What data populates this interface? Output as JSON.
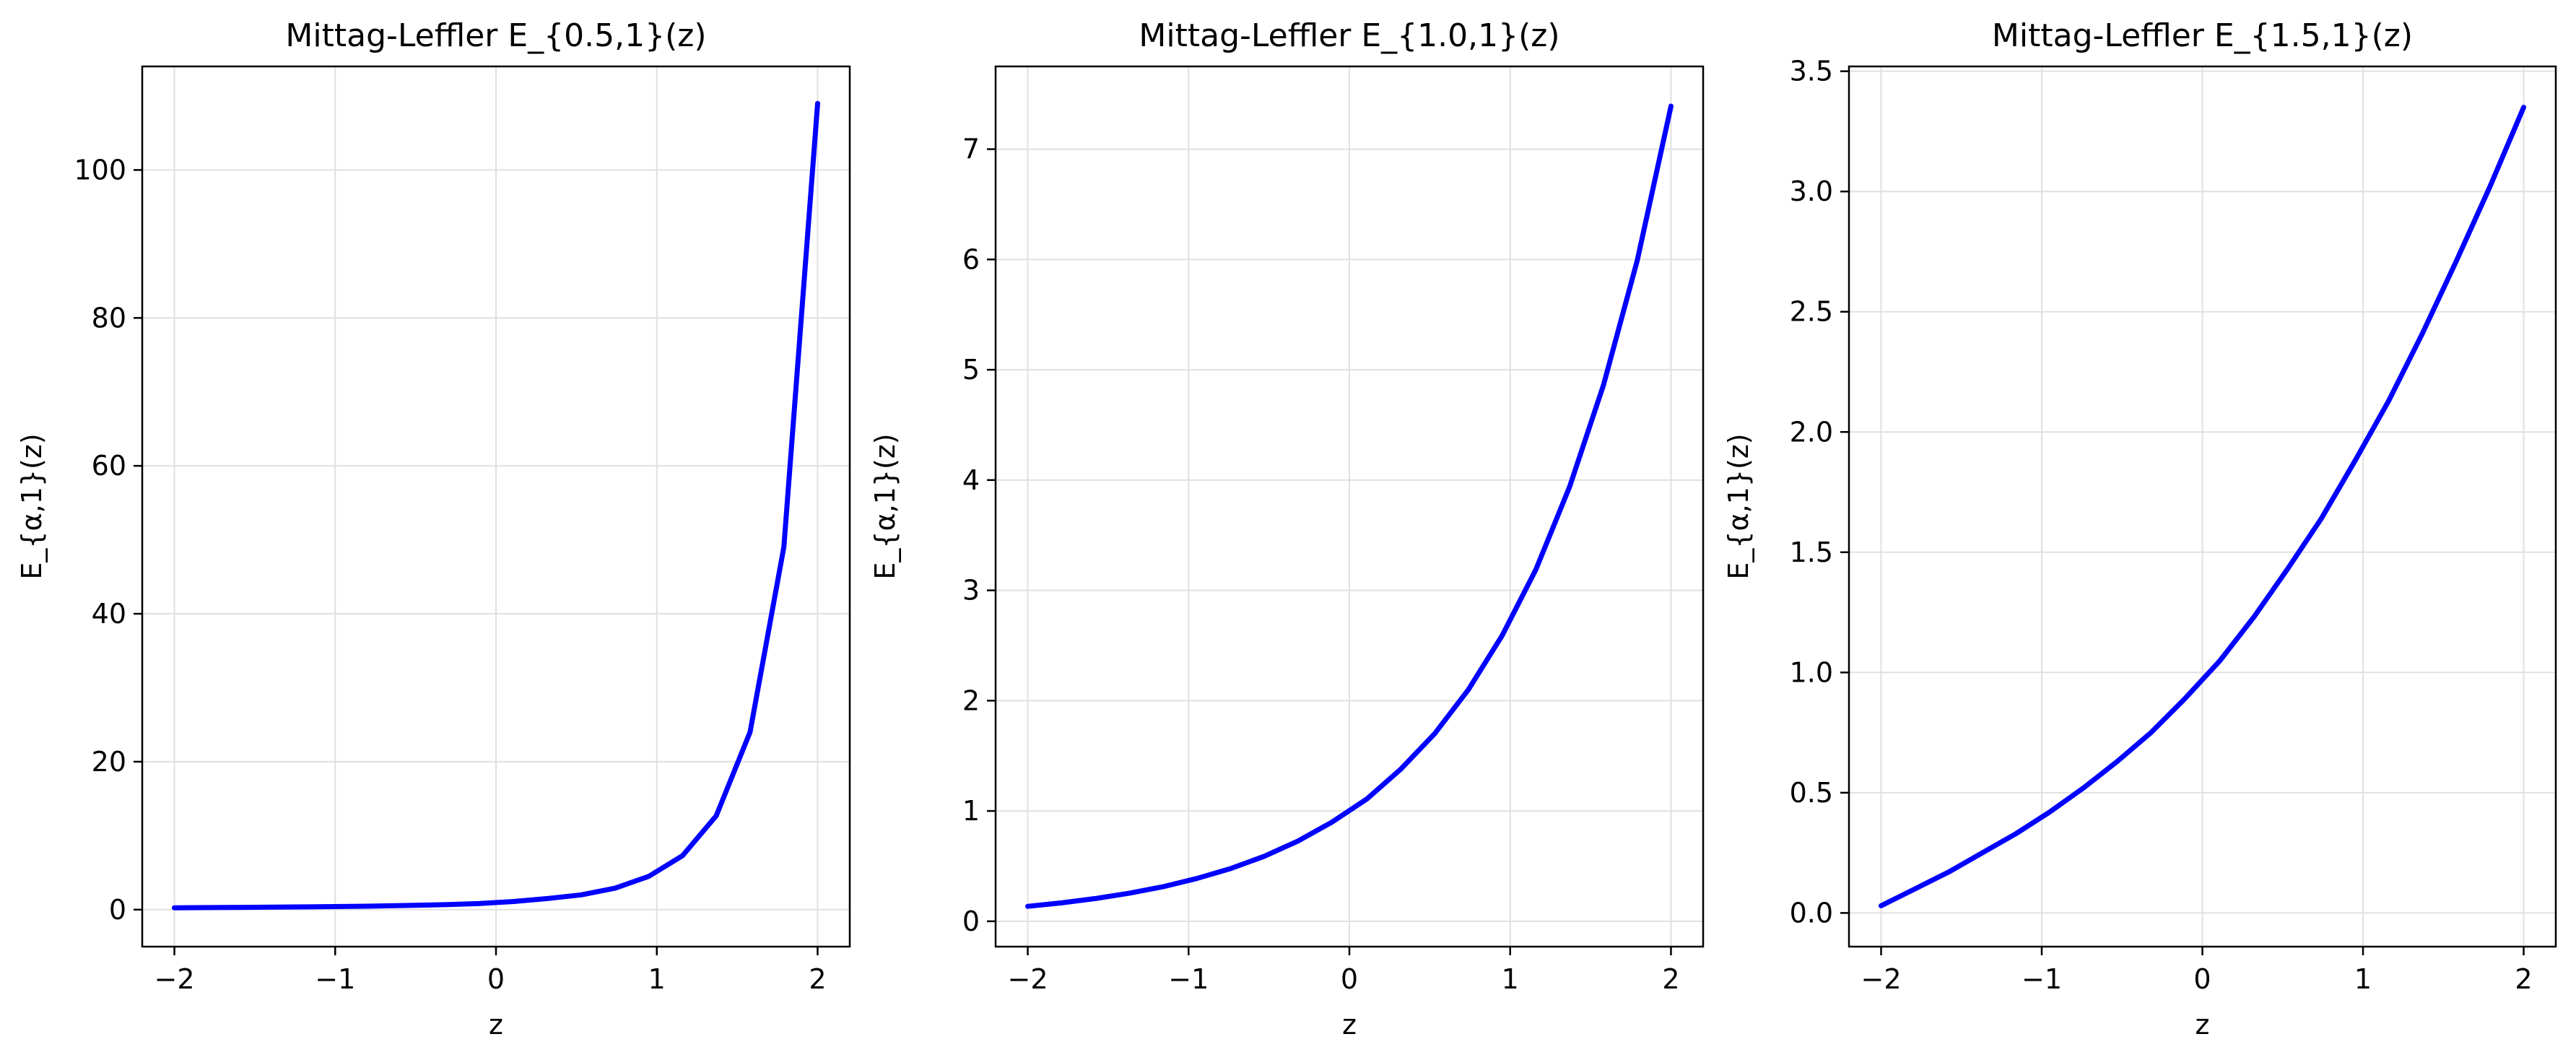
{
  "colors": {
    "line": "#0000ff",
    "grid": "#e0e0e0",
    "axis": "#000000",
    "background": "#ffffff"
  },
  "chart_data": [
    {
      "type": "line",
      "title": "Mittag-Leffler E_{0.5,1}(z)",
      "xlabel": "z",
      "ylabel": "E_{α,1}(z)",
      "xlim": [
        -2.2,
        2.2
      ],
      "ylim": [
        -5,
        114
      ],
      "xticks": [
        -2,
        -1,
        0,
        1,
        2
      ],
      "xtick_labels": [
        "−2",
        "−1",
        "0",
        "1",
        "2"
      ],
      "yticks": [
        0,
        20,
        40,
        60,
        80,
        100
      ],
      "ytick_labels": [
        "0",
        "20",
        "40",
        "60",
        "80",
        "100"
      ],
      "grid": true,
      "legend": "none",
      "series": [
        {
          "x": [
            -2.0,
            -1.79,
            -1.58,
            -1.37,
            -1.16,
            -0.95,
            -0.74,
            -0.53,
            -0.32,
            -0.11,
            0.11,
            0.32,
            0.53,
            0.74,
            0.95,
            1.16,
            1.37,
            1.58,
            1.79,
            2.0
          ],
          "y": [
            0.25,
            0.28,
            0.31,
            0.34,
            0.38,
            0.43,
            0.49,
            0.57,
            0.67,
            0.82,
            1.1,
            1.5,
            2.0,
            2.9,
            4.5,
            7.3,
            12.7,
            24.0,
            49.0,
            109.0
          ]
        }
      ]
    },
    {
      "type": "line",
      "title": "Mittag-Leffler E_{1.0,1}(z)",
      "xlabel": "z",
      "ylabel": "E_{α,1}(z)",
      "xlim": [
        -2.2,
        2.2
      ],
      "ylim": [
        -0.23,
        7.75
      ],
      "xticks": [
        -2,
        -1,
        0,
        1,
        2
      ],
      "xtick_labels": [
        "−2",
        "−1",
        "0",
        "1",
        "2"
      ],
      "yticks": [
        0,
        1,
        2,
        3,
        4,
        5,
        6,
        7
      ],
      "ytick_labels": [
        "0",
        "1",
        "2",
        "3",
        "4",
        "5",
        "6",
        "7"
      ],
      "grid": true,
      "legend": "none",
      "series": [
        {
          "x": [
            -2.0,
            -1.79,
            -1.58,
            -1.37,
            -1.16,
            -0.95,
            -0.74,
            -0.53,
            -0.32,
            -0.11,
            0.11,
            0.32,
            0.53,
            0.74,
            0.95,
            1.16,
            1.37,
            1.58,
            1.79,
            2.0
          ],
          "y": [
            0.135,
            0.167,
            0.206,
            0.254,
            0.313,
            0.387,
            0.477,
            0.589,
            0.727,
            0.897,
            1.11,
            1.38,
            1.7,
            2.1,
            2.59,
            3.19,
            3.94,
            4.86,
            5.99,
            7.39
          ]
        }
      ]
    },
    {
      "type": "line",
      "title": "Mittag-Leffler E_{1.5,1}(z)",
      "xlabel": "z",
      "ylabel": "E_{α,1}(z)",
      "xlim": [
        -2.2,
        2.2
      ],
      "ylim": [
        -0.14,
        3.52
      ],
      "xticks": [
        -2,
        -1,
        0,
        1,
        2
      ],
      "xtick_labels": [
        "−2",
        "−1",
        "0",
        "1",
        "2"
      ],
      "yticks": [
        0.0,
        0.5,
        1.0,
        1.5,
        2.0,
        2.5,
        3.0,
        3.5
      ],
      "ytick_labels": [
        "0.0",
        "0.5",
        "1.0",
        "1.5",
        "2.0",
        "2.5",
        "3.0",
        "3.5"
      ],
      "grid": true,
      "legend": "none",
      "series": [
        {
          "x": [
            -2.0,
            -1.79,
            -1.58,
            -1.37,
            -1.16,
            -0.95,
            -0.74,
            -0.53,
            -0.32,
            -0.11,
            0.11,
            0.32,
            0.53,
            0.74,
            0.95,
            1.16,
            1.37,
            1.58,
            1.79,
            2.0
          ],
          "y": [
            0.03,
            0.1,
            0.17,
            0.25,
            0.33,
            0.42,
            0.52,
            0.63,
            0.75,
            0.89,
            1.05,
            1.23,
            1.43,
            1.64,
            1.88,
            2.13,
            2.41,
            2.71,
            3.02,
            3.35
          ]
        }
      ]
    }
  ]
}
